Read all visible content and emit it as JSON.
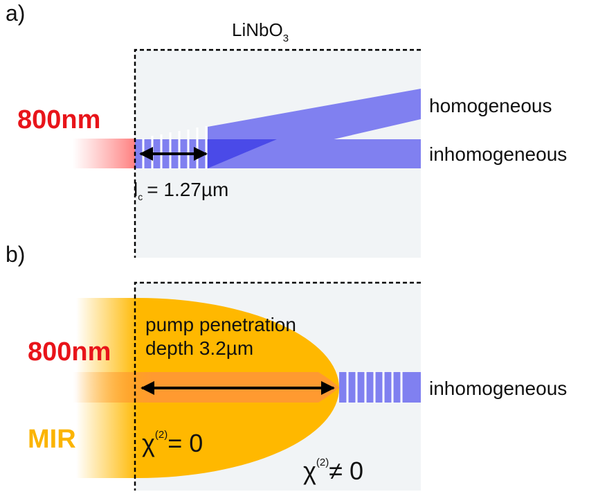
{
  "panel_a": {
    "label": "a)",
    "crystal": {
      "name": "LiNbO",
      "subscript": "3"
    },
    "pump": "800nm",
    "beam_top": "homogeneous",
    "beam_bottom": "inhomogeneous",
    "coherence_length": {
      "symbol": "l",
      "subscript": "c",
      "text": "= 1.27µm"
    }
  },
  "panel_b": {
    "label": "b)",
    "pump": "800nm",
    "emission": "MIR",
    "penetration_line1": "pump penetration",
    "penetration_line2": "depth 3.2µm",
    "beam": "inhomogeneous",
    "chi_zero": {
      "symbol": "χ",
      "superscript": "(2)",
      "text": "= 0"
    },
    "chi_nonzero": {
      "symbol": "χ",
      "superscript": "(2)",
      "text": "≠ 0"
    }
  }
}
